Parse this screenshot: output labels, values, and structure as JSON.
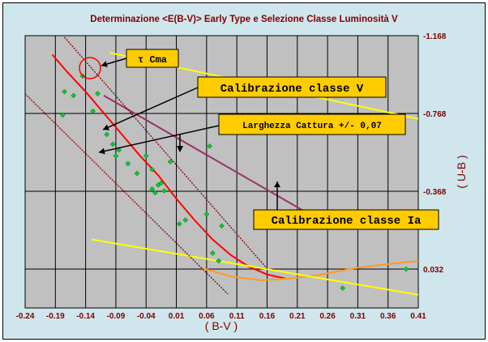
{
  "chart_data": {
    "type": "scatter",
    "title": "Determinazione <E(B-V)> Early Type e Selezione Classe Luminosità V",
    "xlabel": "( B-V )",
    "ylabel": "( U-B )",
    "xlim": [
      -0.24,
      0.41
    ],
    "ylim": [
      0.232,
      -1.168
    ],
    "x_ticks": [
      "-0.24",
      "-0.19",
      "-0.14",
      "-0.09",
      "-0.04",
      "0.01",
      "0.06",
      "0.11",
      "0.16",
      "0.21",
      "0.26",
      "0.31",
      "0.36",
      "0.41"
    ],
    "y_ticks": [
      "-1.168",
      "-0.768",
      "-0.368",
      "0.032"
    ],
    "grid": true,
    "colors": {
      "background": "#cfe6ec",
      "plot": "#c0c0c0",
      "axis_text": "#800000",
      "points": "#00cc33",
      "calib_v": "#ff0000",
      "calib_ia": "#ff9922",
      "reddening": "#ffff00",
      "reddening_upper": "#993366",
      "capture_band": "#800000",
      "callout": "#ffcc00"
    },
    "points": [
      {
        "x": -0.175,
        "y": -0.88
      },
      {
        "x": -0.16,
        "y": -0.86
      },
      {
        "x": -0.145,
        "y": -0.96
      },
      {
        "x": -0.128,
        "y": -0.78
      },
      {
        "x": -0.12,
        "y": -0.87
      },
      {
        "x": -0.178,
        "y": -0.76
      },
      {
        "x": -0.105,
        "y": -0.66
      },
      {
        "x": -0.095,
        "y": -0.61
      },
      {
        "x": -0.085,
        "y": -0.58
      },
      {
        "x": -0.09,
        "y": -0.55
      },
      {
        "x": -0.07,
        "y": -0.51
      },
      {
        "x": -0.055,
        "y": -0.46
      },
      {
        "x": -0.04,
        "y": -0.55
      },
      {
        "x": -0.03,
        "y": -0.48
      },
      {
        "x": -0.02,
        "y": -0.4
      },
      {
        "x": -0.03,
        "y": -0.38
      },
      {
        "x": -0.025,
        "y": -0.36
      },
      {
        "x": -0.015,
        "y": -0.41
      },
      {
        "x": -0.01,
        "y": -0.37
      },
      {
        "x": 0.0,
        "y": -0.52
      },
      {
        "x": 0.015,
        "y": -0.2
      },
      {
        "x": 0.025,
        "y": -0.22
      },
      {
        "x": 0.06,
        "y": -0.25
      },
      {
        "x": 0.065,
        "y": -0.6
      },
      {
        "x": 0.07,
        "y": -0.05
      },
      {
        "x": 0.08,
        "y": -0.01
      },
      {
        "x": 0.085,
        "y": -0.19
      },
      {
        "x": 0.285,
        "y": 0.13
      },
      {
        "x": 0.39,
        "y": 0.032
      }
    ],
    "series": [
      {
        "name": "Calibrazione classe V",
        "x": [
          -0.195,
          -0.17,
          -0.14,
          -0.11,
          -0.08,
          -0.05,
          -0.02,
          0.01,
          0.04,
          0.07,
          0.1,
          0.13,
          0.16,
          0.19
        ],
        "y": [
          -1.07,
          -0.98,
          -0.88,
          -0.77,
          -0.66,
          -0.55,
          -0.45,
          -0.33,
          -0.22,
          -0.12,
          -0.04,
          0.02,
          0.06,
          0.08
        ]
      },
      {
        "name": "Calibrazione classe Ia",
        "x": [
          0.05,
          0.1,
          0.15,
          0.2,
          0.25,
          0.3,
          0.35,
          0.41
        ],
        "y": [
          0.025,
          0.07,
          0.09,
          0.08,
          0.06,
          0.03,
          0.01,
          -0.01
        ]
      },
      {
        "x": [
          -0.13,
          0.41
        ],
        "y": [
          -0.12,
          0.164
        ]
      },
      {
        "x": [
          -0.1,
          0.41
        ],
        "y": [
          -1.08,
          -0.74
        ]
      },
      {
        "x": [
          -0.11,
          0.23
        ],
        "y": [
          -0.86,
          -0.25
        ]
      },
      {
        "x": [
          -0.25,
          0.095
        ],
        "y": [
          -0.9,
          0.16
        ]
      },
      {
        "x": [
          -0.175,
          0.16
        ],
        "y": [
          -1.16,
          0.03
        ]
      }
    ],
    "annotations": [
      {
        "label": "τ Cma"
      },
      {
        "label": "Calibrazione classe V"
      },
      {
        "label": "Larghezza Cattura +/-  0,07"
      },
      {
        "label": "Calibrazione classe Ia"
      }
    ]
  }
}
